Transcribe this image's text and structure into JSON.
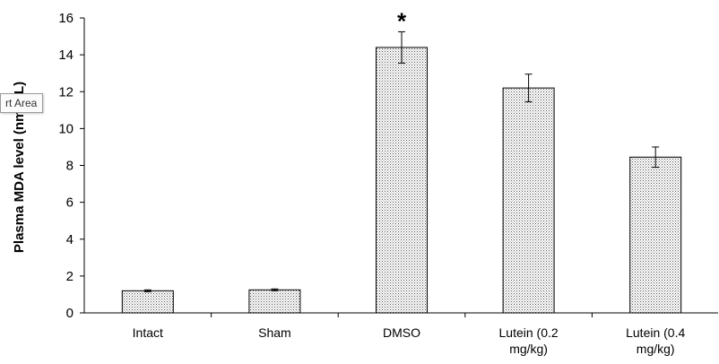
{
  "chart_data": {
    "type": "bar",
    "categories": [
      [
        "Intact"
      ],
      [
        "Sham"
      ],
      [
        "DMSO"
      ],
      [
        "Lutein (0.2",
        "mg/kg)"
      ],
      [
        "Lutein (0.4",
        "mg/kg)"
      ]
    ],
    "values": [
      1.2,
      1.25,
      14.4,
      12.2,
      8.45
    ],
    "errors": [
      0.05,
      0.05,
      0.85,
      0.75,
      0.55
    ],
    "annotations": [
      {
        "category_index": 2,
        "text": "*"
      }
    ],
    "ylabel": "Plasma MDA level (nmol/L)",
    "ylim": [
      0,
      16
    ],
    "yticks": [
      0,
      2,
      4,
      6,
      8,
      10,
      12,
      14,
      16
    ],
    "grid": false,
    "bar_fill": "dotted"
  },
  "tooltip": {
    "text": "rt Area"
  }
}
